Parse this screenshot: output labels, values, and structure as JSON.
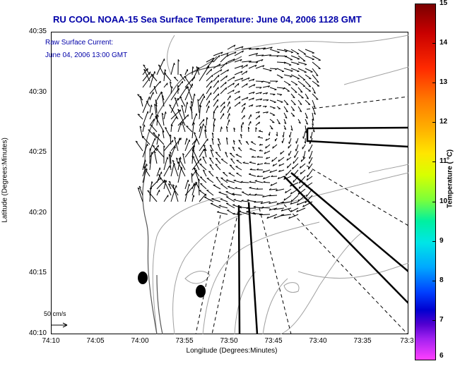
{
  "title": "RU COOL  NOAA-15  Sea Surface Temperature:  June 04, 2006 1128 GMT",
  "overlay": {
    "line1": "Raw Surface Current:",
    "line2": "June 04, 2006 13:00 GMT",
    "scale_label": "50 cm/s"
  },
  "axes": {
    "ylabel": "Latitude (Degrees:Minutes)",
    "xlabel": "Longitude (Degrees:Minutes)",
    "yticks": [
      "40:35",
      "40:30",
      "40:25",
      "40:20",
      "40:15",
      "40:10"
    ],
    "xticks": [
      "74:10",
      "74:05",
      "74:00",
      "73:55",
      "73:50",
      "73:45",
      "73:40",
      "73:35",
      "73:3"
    ]
  },
  "colorbar": {
    "title": "Temperature ( °C)",
    "ticks": [
      "15",
      "14",
      "13",
      "12",
      "11",
      "10",
      "9",
      "8",
      "7",
      "6"
    ]
  },
  "colors": {
    "title": "#0000a8",
    "land": "#ffffff",
    "contour": "#9a9a9a",
    "vectors": "#000000"
  }
}
